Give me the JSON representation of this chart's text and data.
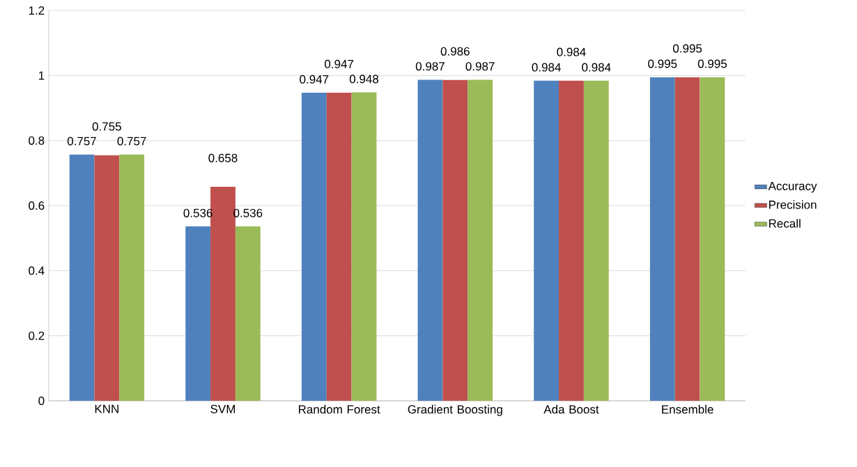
{
  "chart_data": {
    "type": "bar",
    "categories": [
      "KNN",
      "SVM",
      "Random Forest",
      "Gradient Boosting",
      "Ada Boost",
      "Ensemble"
    ],
    "series": [
      {
        "name": "Accuracy",
        "color": "#4f81bd",
        "values": [
          0.757,
          0.536,
          0.947,
          0.987,
          0.984,
          0.995
        ]
      },
      {
        "name": "Precision",
        "color": "#c0504d",
        "values": [
          0.755,
          0.658,
          0.947,
          0.986,
          0.984,
          0.995
        ]
      },
      {
        "name": "Recall",
        "color": "#9bbb59",
        "values": [
          0.757,
          0.536,
          0.948,
          0.987,
          0.984,
          0.995
        ]
      }
    ],
    "ylim": [
      0,
      1.2
    ],
    "yticks": [
      0,
      0.2,
      0.4,
      0.6,
      0.8,
      1,
      1.2
    ],
    "grid": "y",
    "legend": "right",
    "data_labels": true
  }
}
